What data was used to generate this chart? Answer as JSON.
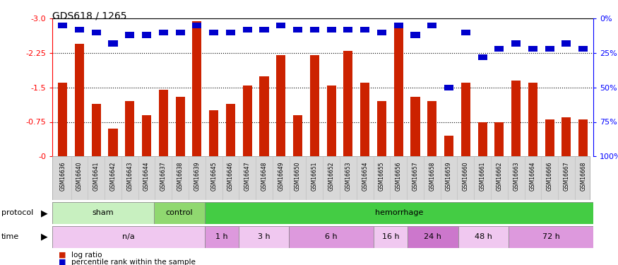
{
  "title": "GDS618 / 1265",
  "samples": [
    "GSM16636",
    "GSM16640",
    "GSM16641",
    "GSM16642",
    "GSM16643",
    "GSM16644",
    "GSM16637",
    "GSM16638",
    "GSM16639",
    "GSM16645",
    "GSM16646",
    "GSM16647",
    "GSM16648",
    "GSM16649",
    "GSM16650",
    "GSM16651",
    "GSM16652",
    "GSM16653",
    "GSM16654",
    "GSM16655",
    "GSM16656",
    "GSM16657",
    "GSM16658",
    "GSM16659",
    "GSM16660",
    "GSM16661",
    "GSM16662",
    "GSM16663",
    "GSM16664",
    "GSM16666",
    "GSM16667",
    "GSM16668"
  ],
  "log_ratio": [
    -1.6,
    -2.45,
    -1.15,
    -0.6,
    -1.2,
    -0.9,
    -1.45,
    -1.3,
    -2.95,
    -1.0,
    -1.15,
    -1.55,
    -1.75,
    -2.2,
    -0.9,
    -2.2,
    -1.55,
    -2.3,
    -1.6,
    -1.2,
    -2.9,
    -1.3,
    -1.2,
    -0.45,
    -1.6,
    -0.75,
    -0.75,
    -1.65,
    -1.6,
    -0.8,
    -0.85,
    -0.8
  ],
  "percentile": [
    5,
    8,
    10,
    18,
    12,
    12,
    10,
    10,
    5,
    10,
    10,
    8,
    8,
    5,
    8,
    8,
    8,
    8,
    8,
    10,
    5,
    12,
    5,
    50,
    10,
    28,
    22,
    18,
    22,
    22,
    18,
    22
  ],
  "yticks_left": [
    0.0,
    -0.75,
    -1.5,
    -2.25,
    -3.0
  ],
  "yticks_right": [
    100,
    75,
    50,
    25,
    0
  ],
  "protocol_groups": [
    {
      "label": "sham",
      "start": 0,
      "end": 6,
      "color": "#c8f0c0"
    },
    {
      "label": "control",
      "start": 6,
      "end": 9,
      "color": "#90d870"
    },
    {
      "label": "hemorrhage",
      "start": 9,
      "end": 32,
      "color": "#44cc44"
    }
  ],
  "time_groups": [
    {
      "label": "n/a",
      "start": 0,
      "end": 9,
      "color": "#f0c8f0"
    },
    {
      "label": "1 h",
      "start": 9,
      "end": 11,
      "color": "#dd99dd"
    },
    {
      "label": "3 h",
      "start": 11,
      "end": 14,
      "color": "#f0c8f0"
    },
    {
      "label": "6 h",
      "start": 14,
      "end": 19,
      "color": "#dd99dd"
    },
    {
      "label": "16 h",
      "start": 19,
      "end": 21,
      "color": "#f0c8f0"
    },
    {
      "label": "24 h",
      "start": 21,
      "end": 24,
      "color": "#cc77cc"
    },
    {
      "label": "48 h",
      "start": 24,
      "end": 27,
      "color": "#f0c8f0"
    },
    {
      "label": "72 h",
      "start": 27,
      "end": 32,
      "color": "#dd99dd"
    }
  ],
  "bar_color": "#cc2200",
  "blue_color": "#0000cc",
  "bg_color": "#ffffff",
  "tick_label_bg": "#cccccc",
  "protocol_label": "protocol",
  "time_label": "time",
  "legend_log_ratio": "log ratio",
  "legend_percentile": "percentile rank within the sample"
}
